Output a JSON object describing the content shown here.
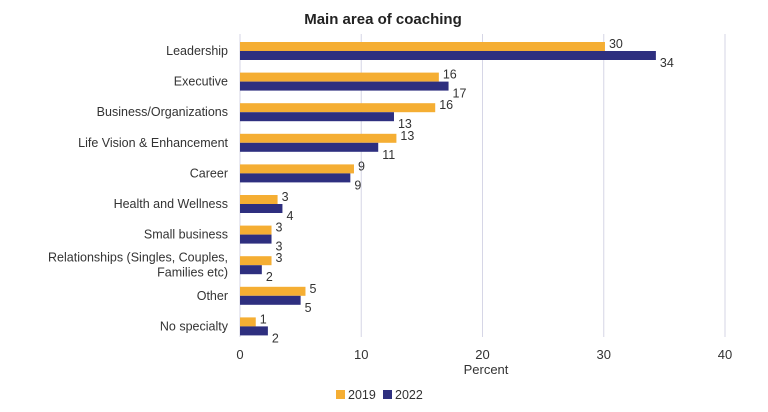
{
  "chart_data": {
    "type": "bar",
    "orientation": "horizontal",
    "title": "Main area of coaching",
    "xlabel": "Percent",
    "ylabel": "",
    "xlim": [
      0,
      40
    ],
    "xticks": [
      0,
      10,
      20,
      30,
      40
    ],
    "grid": "vertical",
    "legend_position": "bottom",
    "categories": [
      [
        "Leadership"
      ],
      [
        "Executive"
      ],
      [
        "Business/Organizations"
      ],
      [
        "Life Vision & Enhancement"
      ],
      [
        "Career"
      ],
      [
        "Health and Wellness"
      ],
      [
        "Small business"
      ],
      [
        "Relationships (Singles, Couples,",
        "Families etc)"
      ],
      [
        "Other"
      ],
      [
        "No specialty"
      ]
    ],
    "series": [
      {
        "name": "2019",
        "color": "#f5ae33",
        "values": [
          30,
          16,
          16,
          13,
          9,
          3,
          3,
          3,
          5,
          1
        ],
        "display_values": [
          30,
          16,
          16,
          13,
          9,
          3,
          3,
          3,
          5,
          1
        ],
        "plotted_values": [
          30.1,
          16.4,
          16.1,
          12.9,
          9.4,
          3.1,
          2.6,
          2.6,
          5.4,
          1.3
        ]
      },
      {
        "name": "2022",
        "color": "#2e2f7f",
        "values": [
          34,
          17,
          13,
          11,
          9,
          4,
          3,
          2,
          5,
          2
        ],
        "display_values": [
          34,
          17,
          13,
          11,
          9,
          4,
          3,
          2,
          5,
          2
        ],
        "plotted_values": [
          34.3,
          17.2,
          12.7,
          11.4,
          9.1,
          3.5,
          2.6,
          1.8,
          5.0,
          2.3
        ]
      }
    ]
  }
}
